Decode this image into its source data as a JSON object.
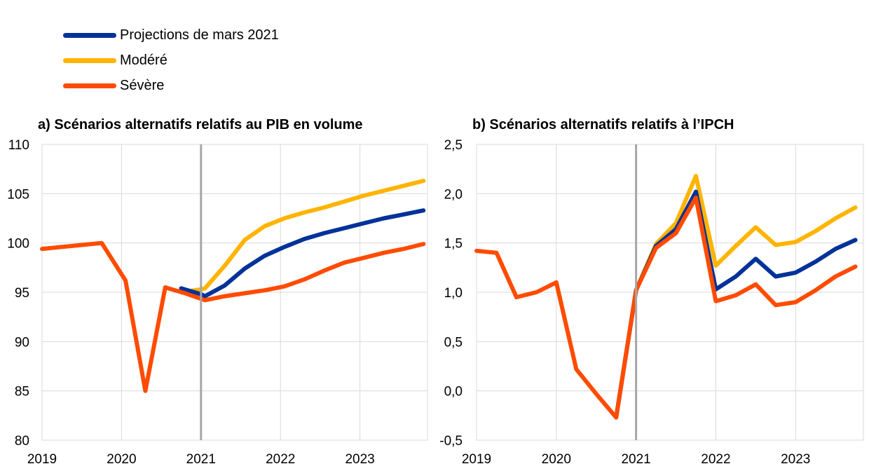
{
  "legend": {
    "items": [
      {
        "label": "Projections de mars 2021",
        "color": "#003299"
      },
      {
        "label": "Modéré",
        "color": "#FFB400"
      },
      {
        "label": "Sévère",
        "color": "#FF4B00"
      }
    ]
  },
  "colors": {
    "grid": "#d9d9d9",
    "marker": "#a6a6a6",
    "text": "#000000"
  },
  "chart_data": [
    {
      "type": "line",
      "title": "a) Scénarios alternatifs relatifs au PIB en volume",
      "xlabel": "",
      "ylabel": "",
      "xlim": [
        2019,
        2023.85
      ],
      "ylim": [
        80,
        110
      ],
      "yticks": [
        80,
        85,
        90,
        95,
        100,
        105,
        110
      ],
      "ytick_labels": [
        "80",
        "85",
        "90",
        "95",
        "100",
        "105",
        "110"
      ],
      "xticks": [
        2019,
        2020,
        2021,
        2022,
        2023
      ],
      "xtick_labels": [
        "2019",
        "2020",
        "2021",
        "2022",
        "2023"
      ],
      "vline": 2021,
      "grid": true,
      "legend": "top-left",
      "series": [
        {
          "name": "Projections de mars 2021",
          "color": "#003299",
          "x": [
            2020.75,
            2021.0,
            2021.05,
            2021.3,
            2021.55,
            2021.8,
            2022.05,
            2022.3,
            2022.55,
            2022.8,
            2023.05,
            2023.3,
            2023.55,
            2023.8
          ],
          "y": [
            95.4,
            94.8,
            94.6,
            95.7,
            97.4,
            98.7,
            99.6,
            100.4,
            101.0,
            101.5,
            102.0,
            102.5,
            102.9,
            103.3
          ]
        },
        {
          "name": "Modéré",
          "color": "#FFB400",
          "x": [
            2020.75,
            2021.0,
            2021.05,
            2021.3,
            2021.55,
            2021.8,
            2022.05,
            2022.3,
            2022.55,
            2022.8,
            2023.05,
            2023.3,
            2023.55,
            2023.8
          ],
          "y": [
            95.0,
            95.3,
            95.4,
            97.7,
            100.3,
            101.7,
            102.5,
            103.1,
            103.6,
            104.2,
            104.8,
            105.3,
            105.8,
            106.3
          ]
        },
        {
          "name": "Sévère",
          "color": "#FF4B00",
          "x": [
            2019.0,
            2019.25,
            2019.5,
            2019.75,
            2020.05,
            2020.3,
            2020.55,
            2020.8,
            2021.05,
            2021.3,
            2021.55,
            2021.8,
            2022.05,
            2022.3,
            2022.55,
            2022.8,
            2023.05,
            2023.3,
            2023.55,
            2023.8
          ],
          "y": [
            99.4,
            99.6,
            99.8,
            100.0,
            96.2,
            85.0,
            95.5,
            94.9,
            94.2,
            94.6,
            94.9,
            95.2,
            95.6,
            96.3,
            97.2,
            98.0,
            98.5,
            99.0,
            99.4,
            99.9
          ]
        }
      ]
    },
    {
      "type": "line",
      "title": "b) Scénarios alternatifs relatifs à l’IPCH",
      "xlabel": "",
      "ylabel": "",
      "xlim": [
        2019,
        2023.85
      ],
      "ylim": [
        -0.5,
        2.5
      ],
      "yticks": [
        -0.5,
        0.0,
        0.5,
        1.0,
        1.5,
        2.0,
        2.5
      ],
      "ytick_labels": [
        "-0,5",
        "0,0",
        "0,5",
        "1,0",
        "1,5",
        "2,0",
        "2,5"
      ],
      "xticks": [
        2019,
        2020,
        2021,
        2022,
        2023
      ],
      "xtick_labels": [
        "2019",
        "2020",
        "2021",
        "2022",
        "2023"
      ],
      "vline": 2021,
      "grid": true,
      "series": [
        {
          "name": "Projections de mars 2021",
          "color": "#003299",
          "x": [
            2020.75,
            2021.0,
            2021.25,
            2021.5,
            2021.75,
            2022.0,
            2022.25,
            2022.5,
            2022.75,
            2023.0,
            2023.25,
            2023.5,
            2023.75
          ],
          "y": [
            -0.27,
            1.02,
            1.47,
            1.64,
            2.02,
            1.03,
            1.16,
            1.34,
            1.16,
            1.2,
            1.31,
            1.44,
            1.53
          ]
        },
        {
          "name": "Modéré",
          "color": "#FFB400",
          "x": [
            2020.75,
            2021.0,
            2021.25,
            2021.5,
            2021.75,
            2022.0,
            2022.25,
            2022.5,
            2022.75,
            2023.0,
            2023.25,
            2023.5,
            2023.75
          ],
          "y": [
            -0.27,
            1.02,
            1.49,
            1.7,
            2.18,
            1.27,
            1.47,
            1.66,
            1.48,
            1.51,
            1.62,
            1.75,
            1.86
          ]
        },
        {
          "name": "Sévère",
          "color": "#FF4B00",
          "x": [
            2019.0,
            2019.25,
            2019.5,
            2019.75,
            2020.0,
            2020.25,
            2020.5,
            2020.75,
            2021.0,
            2021.25,
            2021.5,
            2021.75,
            2022.0,
            2022.25,
            2022.5,
            2022.75,
            2023.0,
            2023.25,
            2023.5,
            2023.75
          ],
          "y": [
            1.42,
            1.4,
            0.95,
            1.0,
            1.1,
            0.22,
            -0.03,
            -0.27,
            1.02,
            1.45,
            1.6,
            1.96,
            0.91,
            0.97,
            1.08,
            0.87,
            0.9,
            1.02,
            1.16,
            1.26
          ]
        }
      ]
    }
  ]
}
